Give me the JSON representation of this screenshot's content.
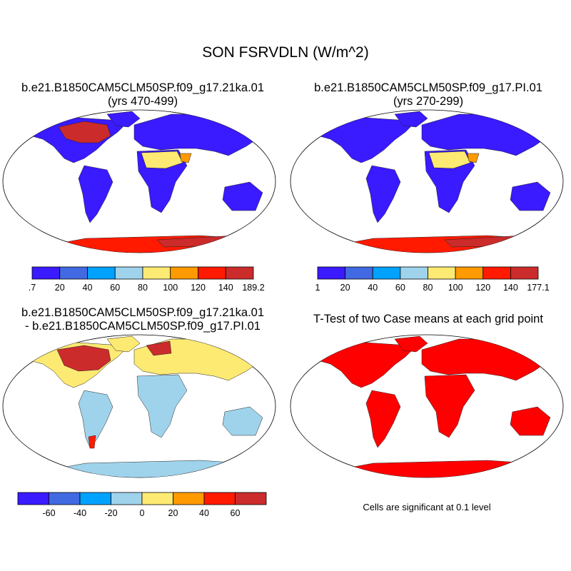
{
  "figure": {
    "title": "SON FSRVDLN (W/m^2)",
    "note": "Cells are significant at 0.1 level"
  },
  "panels": [
    {
      "title_line1": "b.e21.B1850CAM5CLM50SP.f09_g17.21ka.01",
      "title_line2": "(yrs 470-499)",
      "colorbar_labels": [
        ".7",
        "20",
        "40",
        "60",
        "80",
        "100",
        "120",
        "140",
        "189.2"
      ]
    },
    {
      "title_line1": "b.e21.B1850CAM5CLM50SP.f09_g17.PI.01",
      "title_line2": "(yrs 270-299)",
      "colorbar_labels": [
        "1",
        "20",
        "40",
        "60",
        "80",
        "100",
        "120",
        "140",
        "177.1"
      ]
    },
    {
      "title_line1": "b.e21.B1850CAM5CLM50SP.f09_g17.21ka.01",
      "title_line2": "- b.e21.B1850CAM5CLM50SP.f09_g17.PI.01",
      "colorbar_labels": [
        "-60",
        "-40",
        "-20",
        "0",
        "20",
        "40",
        "60"
      ]
    },
    {
      "title_line1": "T-Test of two Case means at each grid point"
    }
  ],
  "colors": {
    "abs_scale": [
      "#3a1aff",
      "#4169e1",
      "#00a2ff",
      "#9fd3ec",
      "#fdea73",
      "#ff9a00",
      "#ff1a00",
      "#cc2b2b"
    ],
    "diff_scale": [
      "#3a1aff",
      "#4169e1",
      "#00a2ff",
      "#9fd3ec",
      "#fdea73",
      "#ff9a00",
      "#ff1a00",
      "#cc2b2b"
    ],
    "significance": "#ff0000"
  }
}
